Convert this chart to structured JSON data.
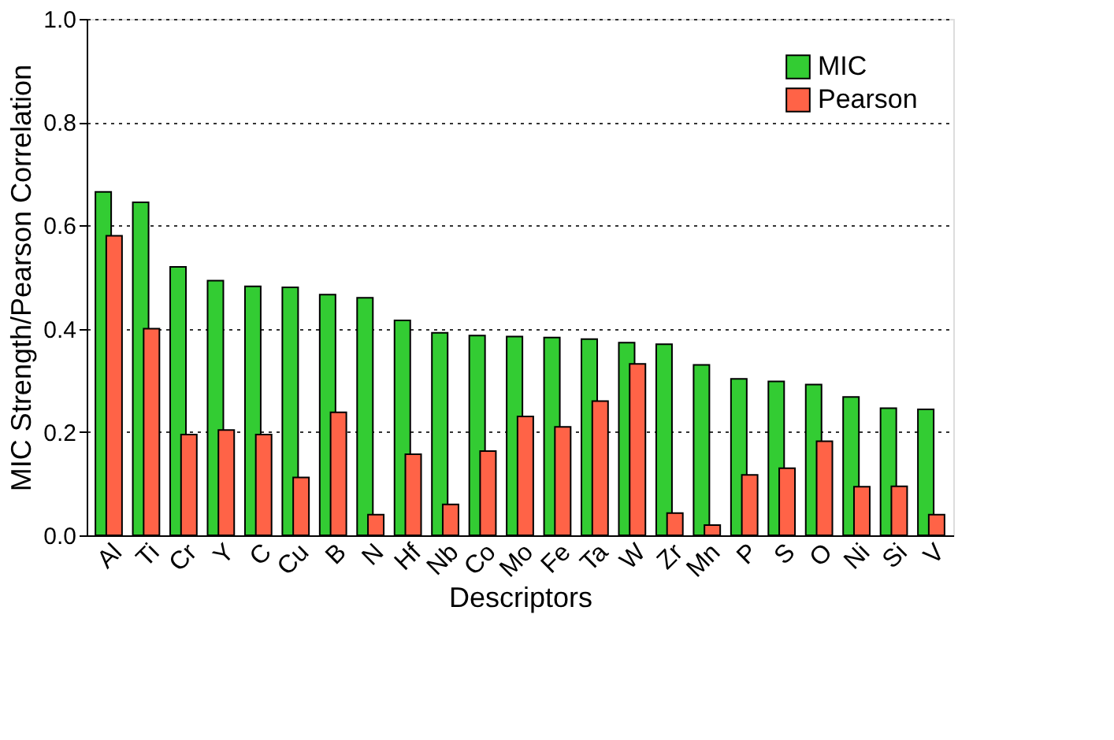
{
  "chart_data": {
    "type": "bar",
    "xlabel": "Descriptors",
    "ylabel": "MIC Strength/Pearson Correlation",
    "categories": [
      "Al",
      "Ti",
      "Cr",
      "Y",
      "C",
      "Cu",
      "B",
      "N",
      "Hf",
      "Nb",
      "Co",
      "Mo",
      "Fe",
      "Ta",
      "W",
      "Zr",
      "Mn",
      "P",
      "S",
      "O",
      "Ni",
      "Si",
      "V"
    ],
    "series": [
      {
        "name": "MIC",
        "color": "#33cc33",
        "values": [
          0.665,
          0.645,
          0.52,
          0.493,
          0.482,
          0.48,
          0.466,
          0.46,
          0.416,
          0.392,
          0.387,
          0.385,
          0.383,
          0.38,
          0.373,
          0.37,
          0.33,
          0.303,
          0.298,
          0.292,
          0.268,
          0.246,
          0.244
        ]
      },
      {
        "name": "Pearson",
        "color": "#ff6347",
        "values": [
          0.58,
          0.4,
          0.195,
          0.204,
          0.195,
          0.112,
          0.238,
          0.04,
          0.157,
          0.06,
          0.163,
          0.23,
          0.21,
          0.26,
          0.332,
          0.043,
          0.02,
          0.117,
          0.13,
          0.182,
          0.094,
          0.095,
          0.04
        ]
      }
    ],
    "ylim": [
      0,
      1.0
    ],
    "yticks": [
      {
        "value": 0,
        "label": "0.0"
      },
      {
        "value": 0.2,
        "label": "0.2"
      },
      {
        "value": 0.4,
        "label": "0.4"
      },
      {
        "value": 0.6,
        "label": "0.6"
      },
      {
        "value": 0.8,
        "label": "0.8"
      },
      {
        "value": 1.0,
        "label": "1.0"
      }
    ],
    "grid": "y",
    "legend": "top right"
  }
}
